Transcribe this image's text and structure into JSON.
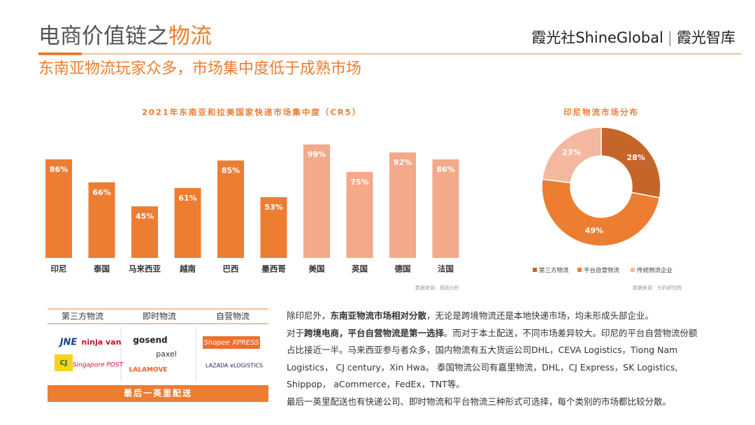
{
  "header": {
    "title_prefix": "电商价值链之",
    "title_highlight": "物流",
    "brand": "霞光社ShineGlobal",
    "brand2": "霞光智库",
    "subtitle": "东南亚物流玩家众多，市场集中度低于成熟市场"
  },
  "chart_data": [
    {
      "type": "bar",
      "title": "2021年东南亚和拉美国家快递市场集中度（CR5）",
      "categories": [
        "印尼",
        "泰国",
        "马来西亚",
        "越南",
        "巴西",
        "墨西哥",
        "美国",
        "英国",
        "德国",
        "法国"
      ],
      "values": [
        86,
        66,
        45,
        61,
        85,
        53,
        99,
        75,
        92,
        86
      ],
      "value_labels": [
        "86%",
        "66%",
        "45%",
        "61%",
        "85%",
        "53%",
        "99%",
        "75%",
        "92%",
        "86%"
      ],
      "colors": [
        "#ed7d31",
        "#ed7d31",
        "#ed7d31",
        "#ed7d31",
        "#ed7d31",
        "#ed7d31",
        "#f3a98a",
        "#f3a98a",
        "#f3a98a",
        "#f3a98a"
      ],
      "source": "数据来源：桓视分析"
    },
    {
      "type": "donut",
      "title": "印尼物流市场分布",
      "categories": [
        "第三方物流",
        "平台自营物流",
        "传统物流企业"
      ],
      "values": [
        28,
        49,
        23
      ],
      "value_labels": [
        "28%",
        "49%",
        "23%"
      ],
      "colors": [
        "#c5652a",
        "#ed7d31",
        "#f4b8a0"
      ],
      "source": "数据来源：头豹研究院"
    }
  ],
  "logos": {
    "headers": [
      "第三方物流",
      "即时物流",
      "自营物流"
    ],
    "items": [
      "JNE",
      "ninja van",
      "gosend",
      "paxel",
      "Shopee XPRESS",
      "CJ",
      "Singapore POST",
      "LALAMOVE",
      "LAZADA eLOGISTICS"
    ],
    "footer": "最后一英里配送"
  },
  "body": [
    [
      {
        "text": "除印尼外，",
        "bold": false
      },
      {
        "text": "东南亚物流市场相对分散",
        "bold": true
      },
      {
        "text": "，无论是跨境物流还是本地快递市场，均未形成头部企业。",
        "bold": false
      }
    ],
    [
      {
        "text": "对于",
        "bold": false
      },
      {
        "text": "跨境电商，平台自营物流是第一选择",
        "bold": true
      },
      {
        "text": "。而对于本土配送，不同市场差异较大。印尼的平台自营物流份额占比接近一半。马来西亚参与者众多，国内物流有五大货运公司DHL，CEVA Logistics，Tiong Nam Logistics， CJ century，Xin Hwa。 泰国物流公司有嘉里物流，DHL，CJ Express，SK Logistics, Shippop， aCommerce，FedEx，TNT等。",
        "bold": false
      }
    ],
    [
      {
        "text": "最后一英里配送也有快递公司、即时物流和平台物流三种形式可选择，每个类别的市场都比较分散。",
        "bold": false
      }
    ]
  ]
}
